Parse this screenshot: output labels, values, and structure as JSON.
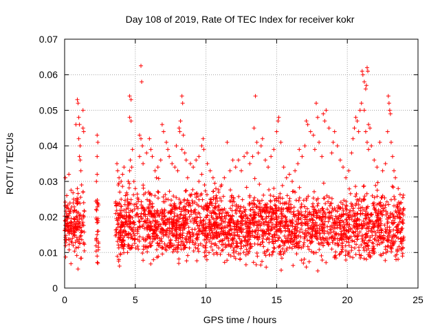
{
  "chart_data": {
    "type": "scatter",
    "title": "Day 108 of 2019, Rate Of TEC Index for receiver kokr",
    "xlabel": "GPS time / hours",
    "ylabel": "ROTI / TECUs",
    "xlim": [
      0,
      25
    ],
    "ylim": [
      0,
      0.07
    ],
    "x_ticks": [
      0,
      5,
      10,
      15,
      20,
      25
    ],
    "x_tick_labels": [
      "0",
      "5",
      "10",
      "15",
      "20",
      "25"
    ],
    "y_ticks": [
      0,
      0.01,
      0.02,
      0.03,
      0.04,
      0.05,
      0.06,
      0.07
    ],
    "y_tick_labels": [
      "0",
      "0.01",
      "0.02",
      "0.03",
      "0.04",
      "0.05",
      "0.06",
      "0.07"
    ],
    "grid": true,
    "marker": "+",
    "color": "#ff0000",
    "series": [
      {
        "name": "ROTI",
        "points": [
          [
            0.05,
            0.031
          ],
          [
            0.15,
            0.026
          ],
          [
            0.3,
            0.032
          ],
          [
            0.35,
            0.021
          ],
          [
            0.5,
            0.016
          ],
          [
            0.55,
            0.014
          ],
          [
            0.9,
            0.028
          ],
          [
            0.95,
            0.024
          ],
          [
            0.8,
            0.046
          ],
          [
            0.9,
            0.053
          ],
          [
            0.95,
            0.052
          ],
          [
            1.0,
            0.048
          ],
          [
            1.05,
            0.046
          ],
          [
            1.0,
            0.042
          ],
          [
            1.1,
            0.04
          ],
          [
            1.05,
            0.037
          ],
          [
            1.1,
            0.036
          ],
          [
            1.15,
            0.033
          ],
          [
            1.3,
            0.045
          ],
          [
            1.35,
            0.044
          ],
          [
            1.3,
            0.05
          ],
          [
            1.2,
            0.029
          ],
          [
            1.3,
            0.027
          ],
          [
            1.35,
            0.024
          ],
          [
            2.3,
            0.043
          ],
          [
            2.35,
            0.041
          ],
          [
            2.3,
            0.037
          ],
          [
            2.3,
            0.032
          ],
          [
            2.25,
            0.03
          ],
          [
            2.3,
            0.024
          ],
          [
            2.35,
            0.019
          ],
          [
            2.3,
            0.015
          ],
          [
            2.25,
            0.014
          ],
          [
            2.3,
            0.009
          ],
          [
            2.35,
            0.007
          ],
          [
            3.7,
            0.035
          ],
          [
            3.75,
            0.033
          ],
          [
            3.85,
            0.031
          ],
          [
            3.8,
            0.029
          ],
          [
            3.9,
            0.027
          ],
          [
            4.0,
            0.03
          ],
          [
            4.1,
            0.032
          ],
          [
            4.2,
            0.034
          ],
          [
            4.5,
            0.03
          ],
          [
            4.6,
            0.033
          ],
          [
            4.3,
            0.026
          ],
          [
            4.45,
            0.025
          ],
          [
            4.6,
            0.054
          ],
          [
            4.7,
            0.053
          ],
          [
            4.6,
            0.048
          ],
          [
            4.7,
            0.047
          ],
          [
            4.8,
            0.039
          ],
          [
            4.65,
            0.036
          ],
          [
            4.75,
            0.034
          ],
          [
            4.9,
            0.03
          ],
          [
            5.0,
            0.028
          ],
          [
            5.4,
            0.0625
          ],
          [
            5.45,
            0.058
          ],
          [
            5.3,
            0.043
          ],
          [
            5.4,
            0.042
          ],
          [
            5.5,
            0.04
          ],
          [
            5.3,
            0.037
          ],
          [
            5.55,
            0.035
          ],
          [
            5.8,
            0.038
          ],
          [
            6.0,
            0.042
          ],
          [
            6.1,
            0.039
          ],
          [
            6.2,
            0.037
          ],
          [
            6.4,
            0.033
          ],
          [
            6.5,
            0.031
          ],
          [
            6.6,
            0.034
          ],
          [
            6.8,
            0.036
          ],
          [
            6.9,
            0.046
          ],
          [
            7.0,
            0.044
          ],
          [
            7.2,
            0.041
          ],
          [
            7.3,
            0.039
          ],
          [
            7.4,
            0.037
          ],
          [
            7.6,
            0.035
          ],
          [
            7.8,
            0.034
          ],
          [
            7.9,
            0.04
          ],
          [
            8.1,
            0.045
          ],
          [
            8.15,
            0.044
          ],
          [
            8.3,
            0.054
          ],
          [
            8.35,
            0.052
          ],
          [
            8.2,
            0.047
          ],
          [
            8.4,
            0.043
          ],
          [
            8.5,
            0.038
          ],
          [
            8.6,
            0.036
          ],
          [
            8.3,
            0.039
          ],
          [
            8.0,
            0.033
          ],
          [
            8.7,
            0.031
          ],
          [
            8.9,
            0.035
          ],
          [
            9.1,
            0.034
          ],
          [
            9.3,
            0.036
          ],
          [
            9.5,
            0.03
          ],
          [
            9.7,
            0.032
          ],
          [
            9.9,
            0.029
          ],
          [
            9.5,
            0.037
          ],
          [
            9.7,
            0.04
          ],
          [
            9.8,
            0.042
          ],
          [
            9.85,
            0.039
          ],
          [
            10.1,
            0.035
          ],
          [
            10.3,
            0.033
          ],
          [
            10.5,
            0.031
          ],
          [
            10.7,
            0.028
          ],
          [
            10.9,
            0.027
          ],
          [
            11.1,
            0.029
          ],
          [
            11.3,
            0.031
          ],
          [
            11.5,
            0.041
          ],
          [
            11.7,
            0.033
          ],
          [
            11.9,
            0.036
          ],
          [
            12.1,
            0.034
          ],
          [
            12.3,
            0.036
          ],
          [
            12.5,
            0.033
          ],
          [
            12.7,
            0.037
          ],
          [
            12.9,
            0.038
          ],
          [
            13.1,
            0.035
          ],
          [
            13.3,
            0.037
          ],
          [
            13.4,
            0.045
          ],
          [
            13.5,
            0.054
          ],
          [
            13.6,
            0.041
          ],
          [
            13.7,
            0.038
          ],
          [
            13.9,
            0.04
          ],
          [
            14.0,
            0.042
          ],
          [
            14.2,
            0.036
          ],
          [
            14.4,
            0.034
          ],
          [
            14.6,
            0.037
          ],
          [
            14.8,
            0.039
          ],
          [
            15.0,
            0.044
          ],
          [
            15.1,
            0.047
          ],
          [
            15.15,
            0.048
          ],
          [
            15.3,
            0.041
          ],
          [
            15.5,
            0.034
          ],
          [
            15.7,
            0.031
          ],
          [
            15.9,
            0.032
          ],
          [
            16.1,
            0.03
          ],
          [
            16.3,
            0.033
          ],
          [
            16.5,
            0.035
          ],
          [
            16.6,
            0.039
          ],
          [
            16.8,
            0.037
          ],
          [
            17.0,
            0.04
          ],
          [
            17.1,
            0.047
          ],
          [
            17.2,
            0.046
          ],
          [
            17.4,
            0.044
          ],
          [
            17.6,
            0.043
          ],
          [
            17.7,
            0.039
          ],
          [
            17.8,
            0.052
          ],
          [
            17.9,
            0.048
          ],
          [
            18.0,
            0.041
          ],
          [
            18.2,
            0.037
          ],
          [
            18.3,
            0.049
          ],
          [
            18.4,
            0.047
          ],
          [
            18.5,
            0.05
          ],
          [
            18.7,
            0.045
          ],
          [
            18.9,
            0.038
          ],
          [
            19.0,
            0.041
          ],
          [
            19.1,
            0.044
          ],
          [
            19.3,
            0.04
          ],
          [
            19.5,
            0.036
          ],
          [
            19.7,
            0.034
          ],
          [
            19.9,
            0.031
          ],
          [
            20.1,
            0.033
          ],
          [
            20.3,
            0.038
          ],
          [
            20.4,
            0.042
          ],
          [
            20.5,
            0.045
          ],
          [
            20.6,
            0.048
          ],
          [
            20.7,
            0.047
          ],
          [
            20.8,
            0.044
          ],
          [
            20.9,
            0.05
          ],
          [
            21.0,
            0.052
          ],
          [
            21.05,
            0.061
          ],
          [
            21.1,
            0.06
          ],
          [
            21.2,
            0.058
          ],
          [
            21.3,
            0.056
          ],
          [
            21.4,
            0.062
          ],
          [
            21.45,
            0.061
          ],
          [
            21.35,
            0.057
          ],
          [
            21.2,
            0.05
          ],
          [
            21.5,
            0.046
          ],
          [
            21.6,
            0.045
          ],
          [
            21.3,
            0.044
          ],
          [
            21.4,
            0.041
          ],
          [
            21.5,
            0.039
          ],
          [
            21.7,
            0.04
          ],
          [
            21.9,
            0.036
          ],
          [
            22.1,
            0.034
          ],
          [
            22.3,
            0.041
          ],
          [
            22.5,
            0.033
          ],
          [
            22.7,
            0.035
          ],
          [
            22.9,
            0.054
          ],
          [
            22.95,
            0.052
          ],
          [
            23.0,
            0.05
          ],
          [
            23.05,
            0.049
          ],
          [
            22.85,
            0.044
          ],
          [
            23.1,
            0.041
          ],
          [
            23.2,
            0.037
          ],
          [
            23.3,
            0.033
          ],
          [
            23.4,
            0.031
          ],
          [
            23.6,
            0.028
          ],
          [
            23.8,
            0.024
          ],
          [
            23.9,
            0.021
          ],
          [
            23.95,
            0.014
          ],
          [
            23.9,
            0.009
          ]
        ]
      }
    ],
    "dense_band": {
      "description_ranges_hours": [
        [
          0.0,
          1.4
        ],
        [
          2.2,
          2.4
        ],
        [
          3.6,
          24.0
        ]
      ],
      "typical_min": 0.004,
      "typical_max": 0.03
    }
  }
}
